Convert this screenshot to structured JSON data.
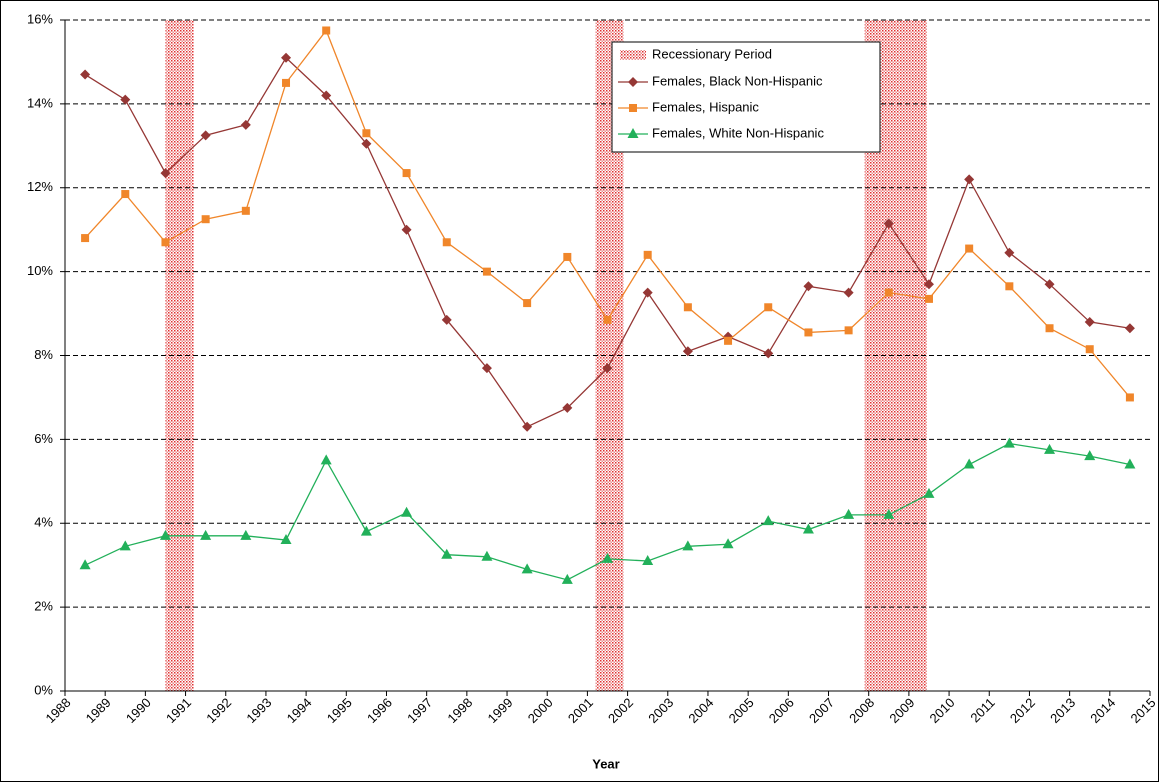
{
  "chart_data": {
    "type": "line",
    "x_label": "Year",
    "xlim": [
      1988,
      2015
    ],
    "xticks": [
      1988,
      1989,
      1990,
      1991,
      1992,
      1993,
      1994,
      1995,
      1996,
      1997,
      1998,
      1999,
      2000,
      2001,
      2002,
      2003,
      2004,
      2005,
      2006,
      2007,
      2008,
      2009,
      2010,
      2011,
      2012,
      2013,
      2014,
      2015
    ],
    "ylim": [
      0,
      16
    ],
    "yticks": [
      {
        "value": 0,
        "label": "0%"
      },
      {
        "value": 2,
        "label": "2%"
      },
      {
        "value": 4,
        "label": "4%"
      },
      {
        "value": 6,
        "label": "6%"
      },
      {
        "value": 8,
        "label": "8%"
      },
      {
        "value": 10,
        "label": "10%"
      },
      {
        "value": 12,
        "label": "12%"
      },
      {
        "value": 14,
        "label": "14%"
      },
      {
        "value": 16,
        "label": "16%"
      }
    ],
    "grid": true,
    "legend_position": "upper right",
    "recession": {
      "name": "Recessionary Period",
      "color": "#e03030",
      "spans": [
        [
          1990.5,
          1991.2
        ],
        [
          2001.2,
          2001.9
        ],
        [
          2007.9,
          2009.45
        ]
      ]
    },
    "x": [
      1988.5,
      1989.5,
      1990.5,
      1991.5,
      1992.5,
      1993.5,
      1994.5,
      1995.5,
      1996.5,
      1997.5,
      1998.5,
      1999.5,
      2000.5,
      2001.5,
      2002.5,
      2003.5,
      2004.5,
      2005.5,
      2006.5,
      2007.5,
      2008.5,
      2009.5,
      2010.5,
      2011.5,
      2012.5,
      2013.5,
      2014.5
    ],
    "series": [
      {
        "name": "Females, Black Non-Hispanic",
        "color": "#953735",
        "marker": "diamond",
        "values": [
          14.7,
          14.1,
          12.35,
          13.25,
          13.5,
          15.1,
          14.2,
          13.05,
          11.0,
          8.85,
          7.7,
          6.3,
          6.75,
          7.7,
          9.5,
          8.1,
          8.45,
          8.05,
          9.65,
          9.5,
          11.15,
          9.7,
          12.2,
          10.45,
          9.7,
          8.8,
          8.65
        ]
      },
      {
        "name": "Females, Hispanic",
        "color": "#f0862a",
        "marker": "square",
        "values": [
          10.8,
          11.85,
          10.7,
          11.25,
          11.45,
          14.5,
          15.75,
          13.3,
          12.35,
          10.7,
          10.0,
          9.25,
          10.35,
          8.85,
          10.4,
          9.15,
          8.35,
          9.15,
          8.55,
          8.6,
          9.5,
          9.35,
          10.55,
          9.65,
          8.65,
          8.15,
          7.0
        ]
      },
      {
        "name": "Females, White Non-Hispanic",
        "color": "#22b05a",
        "marker": "triangle",
        "values": [
          3.0,
          3.45,
          3.7,
          3.7,
          3.7,
          3.6,
          5.5,
          3.8,
          4.25,
          3.25,
          3.2,
          2.9,
          2.65,
          3.15,
          3.1,
          3.45,
          3.5,
          4.05,
          3.85,
          4.2,
          4.2,
          4.7,
          5.4,
          5.9,
          5.75,
          5.6,
          5.4
        ]
      }
    ]
  }
}
